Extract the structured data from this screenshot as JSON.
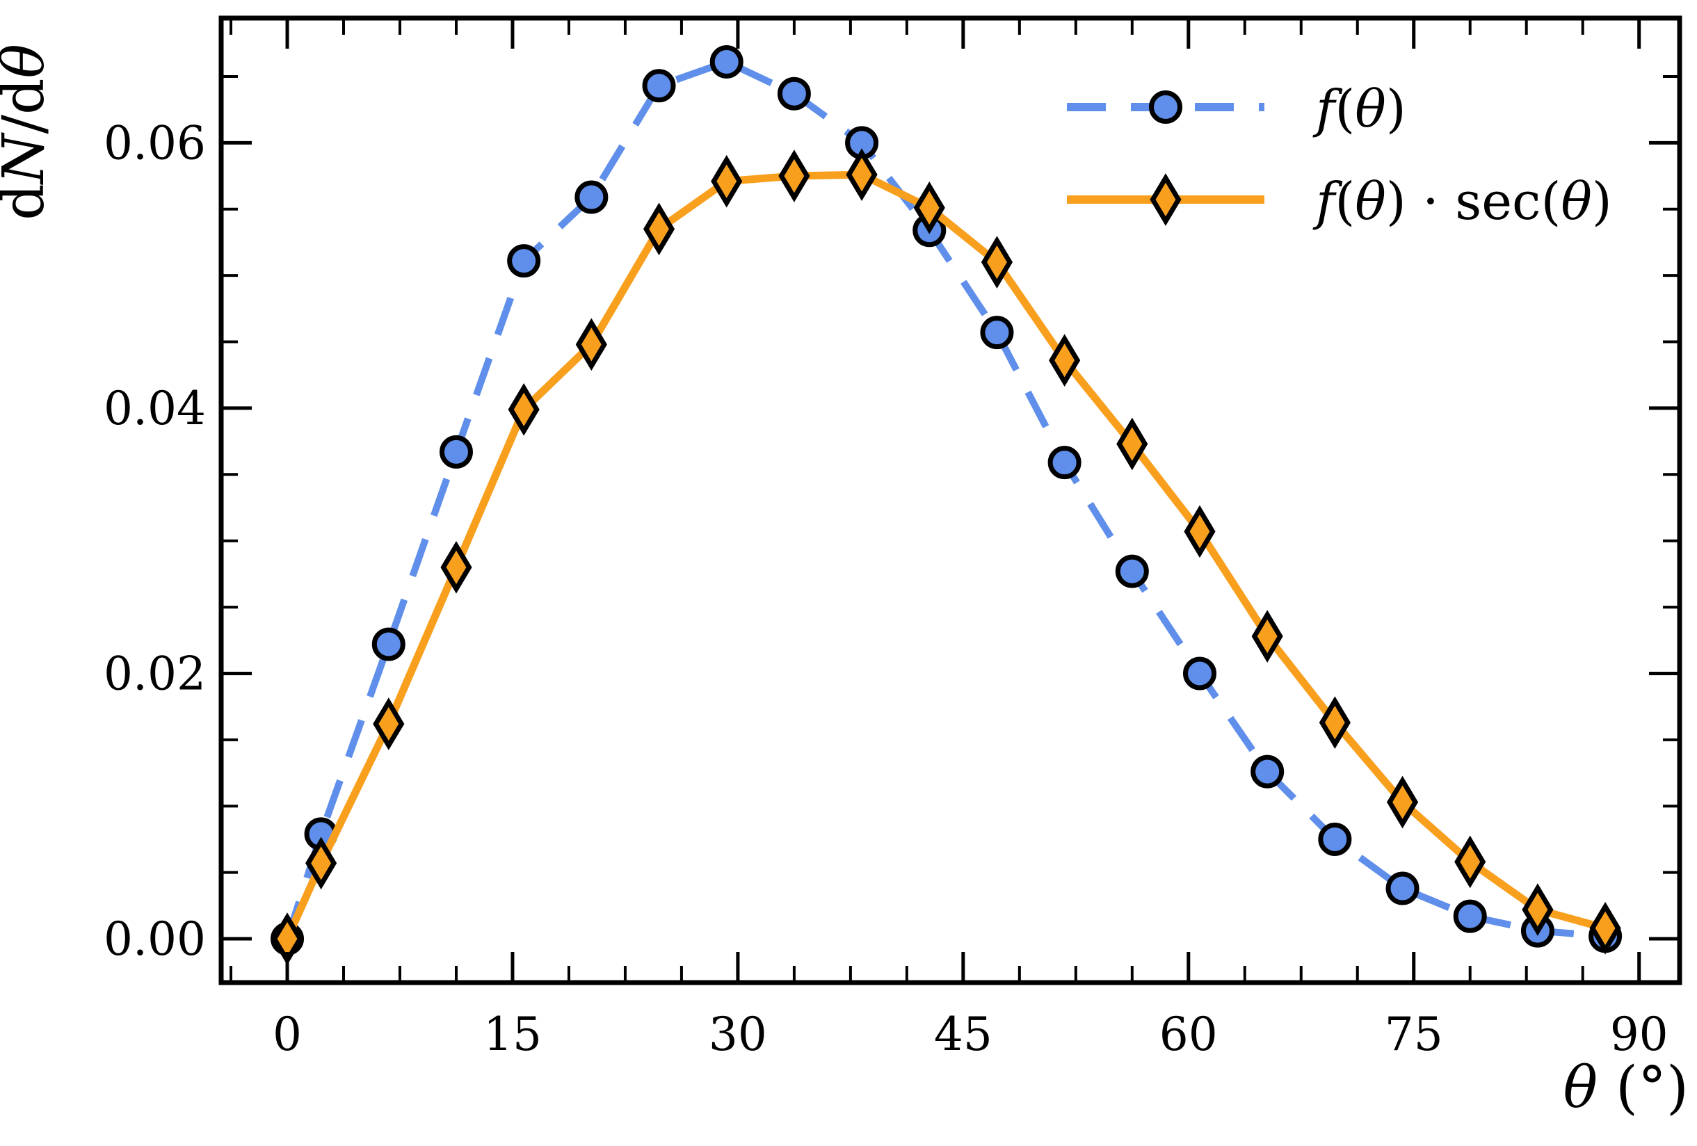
{
  "figure": {
    "background": "#ffffff"
  },
  "axes": {
    "xlabel": "θ (°)",
    "ylabel": "dN/dθ",
    "xlabel_parts": [
      {
        "t": "θ",
        "it": true
      },
      {
        "t": " (°)",
        "it": false
      }
    ],
    "ylabel_parts": [
      {
        "t": "d",
        "it": false
      },
      {
        "t": "N",
        "it": true
      },
      {
        "t": "/d",
        "it": false
      },
      {
        "t": "θ",
        "it": true
      }
    ],
    "x_ticks": [
      0,
      15,
      30,
      45,
      60,
      75,
      90
    ],
    "x_tick_labels": [
      "0",
      "15",
      "30",
      "45",
      "60",
      "75",
      "90"
    ],
    "y_ticks": [
      0.0,
      0.02,
      0.04,
      0.06
    ],
    "y_tick_labels": [
      "0.00",
      "0.02",
      "0.04",
      "0.06"
    ],
    "x_minor_step": 3.75,
    "y_minor_step": 0.005,
    "xlim": [
      -4.4,
      92.7
    ],
    "ylim": [
      -0.0033,
      0.0694
    ],
    "spine_color": "#000000",
    "tick_direction": "in",
    "ticks_all_sides": true,
    "grid": false
  },
  "chart_data": {
    "type": "line",
    "title": "",
    "xlabel": "θ (°)",
    "ylabel": "dN/dθ",
    "legend_position": "upper right",
    "legend_frame": false,
    "x": [
      0,
      2.25,
      6.75,
      11.25,
      15.75,
      20.25,
      24.75,
      29.25,
      33.75,
      38.25,
      42.75,
      47.25,
      51.75,
      56.25,
      60.75,
      65.25,
      69.75,
      74.25,
      78.75,
      83.25,
      87.75
    ],
    "series": [
      {
        "name": "f(θ)",
        "name_parts": [
          {
            "t": "f",
            "it": true
          },
          {
            "t": "(",
            "it": false
          },
          {
            "t": "θ",
            "it": true
          },
          {
            "t": ")",
            "it": false
          }
        ],
        "color": "#5F8FEA",
        "marker": "circle",
        "marker_edge_color": "#000000",
        "linestyle": "dashed",
        "values": [
          0.0,
          0.0079,
          0.0222,
          0.0367,
          0.0511,
          0.0559,
          0.0643,
          0.0661,
          0.0637,
          0.06,
          0.0534,
          0.0457,
          0.0359,
          0.0277,
          0.02,
          0.0126,
          0.0075,
          0.0038,
          0.0017,
          0.0006,
          0.0002
        ]
      },
      {
        "name": "f(θ) · sec(θ)",
        "name_parts": [
          {
            "t": "f",
            "it": true
          },
          {
            "t": "(",
            "it": false
          },
          {
            "t": "θ",
            "it": true
          },
          {
            "t": ") · sec(",
            "it": false
          },
          {
            "t": "θ",
            "it": true
          },
          {
            "t": ")",
            "it": false
          }
        ],
        "color": "#F8A01E",
        "marker": "thin_diamond",
        "marker_edge_color": "#000000",
        "linestyle": "solid",
        "values": [
          0.0,
          0.0057,
          0.0162,
          0.028,
          0.0399,
          0.0448,
          0.0535,
          0.0571,
          0.0575,
          0.0576,
          0.0551,
          0.051,
          0.0436,
          0.0373,
          0.0307,
          0.0228,
          0.0163,
          0.0103,
          0.0058,
          0.0022,
          0.0008
        ]
      }
    ]
  }
}
